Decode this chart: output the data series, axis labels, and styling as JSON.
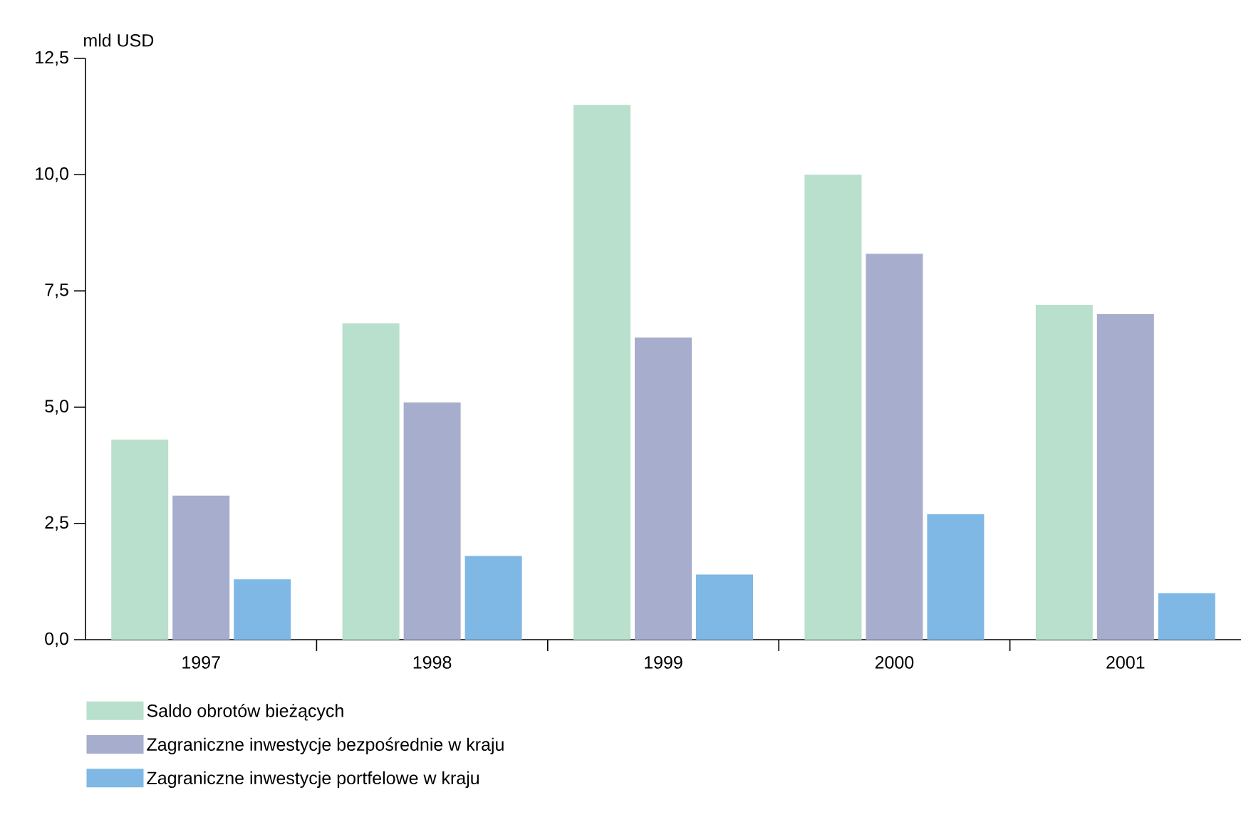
{
  "chart_data": {
    "type": "bar",
    "ylabel": "mld USD",
    "categories": [
      "1997",
      "1998",
      "1999",
      "2000",
      "2001"
    ],
    "series": [
      {
        "name": "Saldo obrotów bieżących",
        "color": "#b8e0cc",
        "values": [
          4.3,
          6.8,
          11.5,
          10.0,
          7.2
        ]
      },
      {
        "name": "Zagraniczne inwestycje bezpośrednie w kraju",
        "color": "#a7adcc",
        "values": [
          3.1,
          5.1,
          6.5,
          8.3,
          7.0
        ]
      },
      {
        "name": "Zagraniczne inwestycje portfelowe w kraju",
        "color": "#7fb8e4",
        "values": [
          1.3,
          1.8,
          1.4,
          2.7,
          1.0
        ]
      }
    ],
    "ylim": [
      0,
      12.5
    ],
    "yticks": [
      {
        "value": 0,
        "label": "0,0"
      },
      {
        "value": 2.5,
        "label": "2,5"
      },
      {
        "value": 5,
        "label": "5,0"
      },
      {
        "value": 7.5,
        "label": "7,5"
      },
      {
        "value": 10,
        "label": "10,0"
      },
      {
        "value": 12.5,
        "label": "12,5"
      }
    ],
    "grid": false,
    "legend": "bottom left"
  }
}
